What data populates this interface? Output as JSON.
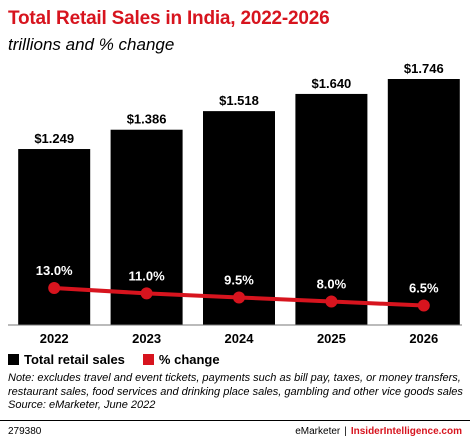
{
  "title": "Total Retail Sales in India, 2022-2026",
  "subtitle": "trillions and % change",
  "legend": [
    {
      "label": "Total retail sales",
      "color": "#000000"
    },
    {
      "label": "% change",
      "color": "#d7141e"
    }
  ],
  "note_lines": [
    "Note: excludes travel and event tickets, payments such as bill pay, taxes, or money transfers,",
    "restaurant sales, food services and drinking place sales, gambling and other vice goods sales",
    "Source: eMarketer, June 2022"
  ],
  "footer": {
    "code": "279380",
    "brand": "eMarketer",
    "separator": "|",
    "brand2": "InsiderIntelligence.com"
  },
  "chart_data": {
    "type": "bar",
    "categories": [
      "2022",
      "2023",
      "2024",
      "2025",
      "2026"
    ],
    "series": [
      {
        "name": "Total retail sales",
        "type": "bar",
        "color": "#000000",
        "values": [
          1.249,
          1.386,
          1.518,
          1.64,
          1.746
        ],
        "labels": [
          "$1.249",
          "$1.386",
          "$1.518",
          "$1.640",
          "$1.746"
        ]
      },
      {
        "name": "% change",
        "type": "line",
        "color": "#d7141e",
        "values": [
          13.0,
          11.0,
          9.5,
          8.0,
          6.5
        ],
        "labels": [
          "13.0%",
          "11.0%",
          "9.5%",
          "8.0%",
          "6.5%"
        ]
      }
    ],
    "ylim": [
      0,
      1.746
    ],
    "legend_position": "bottom-left",
    "grid": false
  }
}
